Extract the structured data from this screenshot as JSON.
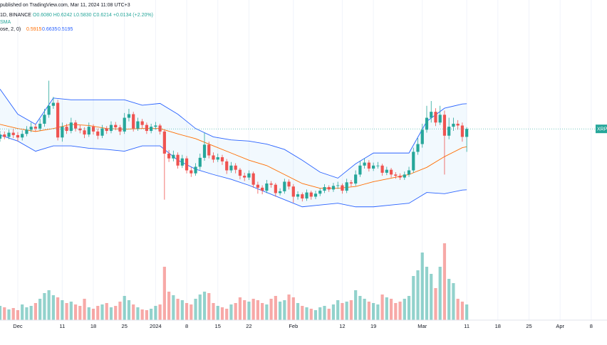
{
  "header": {
    "line1": "published on TradingView.com, Mar 11, 2024 11:08 UTC+3",
    "symbol": "1D, BINANCE",
    "ohlc": "O0.6080 H0.6242 L0.5830 C0.6214 +0.0134 (+2.20%)",
    "line3": "SMA",
    "indicator": "ose, 2, 0)",
    "basis": "0.5915",
    "upper": "0.6635",
    "lower": "0.5195"
  },
  "chart_data": {
    "type": "candlestick",
    "price_label": "XRPU",
    "up_color": "#26a69a",
    "down_color": "#ef5350",
    "ylim": [
      0.48,
      0.837
    ],
    "xlim": [
      0,
      136.55
    ],
    "xticks": [
      {
        "value": 4,
        "label": "Dec"
      },
      {
        "value": 14,
        "label": "11"
      },
      {
        "value": 21,
        "label": "18"
      },
      {
        "value": 28,
        "label": "25"
      },
      {
        "value": 35,
        "label": "2024"
      },
      {
        "value": 42,
        "label": "8"
      },
      {
        "value": 49,
        "label": "15"
      },
      {
        "value": 56,
        "label": "22"
      },
      {
        "value": 66,
        "label": "Feb"
      },
      {
        "value": 77,
        "label": "12"
      },
      {
        "value": 84,
        "label": "19"
      },
      {
        "value": 95,
        "label": "Mar"
      },
      {
        "value": 105,
        "label": "11"
      },
      {
        "value": 112,
        "label": "18"
      },
      {
        "value": 119,
        "label": "25"
      },
      {
        "value": 126,
        "label": "Apr"
      },
      {
        "value": 133,
        "label": "8"
      }
    ],
    "open": [
      0.605,
      0.612,
      0.608,
      0.615,
      0.611,
      0.607,
      0.613,
      0.62,
      0.625,
      0.622,
      0.63,
      0.645,
      0.66,
      0.665,
      0.607,
      0.625,
      0.618,
      0.632,
      0.622,
      0.619,
      0.612,
      0.625,
      0.617,
      0.61,
      0.622,
      0.618,
      0.628,
      0.624,
      0.617,
      0.64,
      0.646,
      0.622,
      0.634,
      0.628,
      0.618,
      0.625,
      0.627,
      0.617,
      0.58,
      0.572,
      0.578,
      0.56,
      0.572,
      0.552,
      0.547,
      0.558,
      0.573,
      0.595,
      0.577,
      0.57,
      0.574,
      0.567,
      0.552,
      0.56,
      0.553,
      0.543,
      0.54,
      0.547,
      0.528,
      0.523,
      0.518,
      0.53,
      0.528,
      0.514,
      0.517,
      0.533,
      0.525,
      0.508,
      0.512,
      0.505,
      0.515,
      0.508,
      0.513,
      0.518,
      0.524,
      0.52,
      0.526,
      0.527,
      0.518,
      0.532,
      0.53,
      0.545,
      0.56,
      0.565,
      0.555,
      0.56,
      0.56,
      0.548,
      0.553,
      0.545,
      0.543,
      0.54,
      0.545,
      0.552,
      0.583,
      0.596,
      0.62,
      0.64,
      0.65,
      0.632,
      0.645,
      0.61,
      0.625,
      0.63,
      0.627,
      0.608
    ],
    "high": [
      0.618,
      0.617,
      0.62,
      0.621,
      0.616,
      0.619,
      0.626,
      0.632,
      0.63,
      0.638,
      0.655,
      0.702,
      0.675,
      0.67,
      0.632,
      0.63,
      0.64,
      0.636,
      0.628,
      0.624,
      0.632,
      0.629,
      0.622,
      0.628,
      0.626,
      0.634,
      0.633,
      0.628,
      0.648,
      0.655,
      0.65,
      0.64,
      0.638,
      0.632,
      0.63,
      0.633,
      0.63,
      0.62,
      0.586,
      0.585,
      0.582,
      0.578,
      0.576,
      0.557,
      0.564,
      0.58,
      0.615,
      0.6,
      0.582,
      0.58,
      0.578,
      0.571,
      0.566,
      0.564,
      0.556,
      0.548,
      0.552,
      0.55,
      0.533,
      0.527,
      0.536,
      0.534,
      0.531,
      0.522,
      0.538,
      0.537,
      0.529,
      0.517,
      0.515,
      0.52,
      0.518,
      0.518,
      0.522,
      0.529,
      0.527,
      0.531,
      0.533,
      0.53,
      0.538,
      0.536,
      0.552,
      0.568,
      0.572,
      0.569,
      0.565,
      0.566,
      0.563,
      0.558,
      0.556,
      0.549,
      0.547,
      0.55,
      0.558,
      0.59,
      0.606,
      0.63,
      0.66,
      0.668,
      0.656,
      0.66,
      0.652,
      0.64,
      0.64,
      0.636,
      0.632,
      0.6242
    ],
    "low": [
      0.6,
      0.604,
      0.604,
      0.606,
      0.601,
      0.602,
      0.609,
      0.616,
      0.617,
      0.618,
      0.625,
      0.64,
      0.655,
      0.602,
      0.6,
      0.613,
      0.614,
      0.617,
      0.614,
      0.606,
      0.608,
      0.612,
      0.604,
      0.606,
      0.613,
      0.614,
      0.619,
      0.611,
      0.613,
      0.634,
      0.617,
      0.618,
      0.622,
      0.613,
      0.614,
      0.62,
      0.612,
      0.503,
      0.566,
      0.567,
      0.555,
      0.556,
      0.547,
      0.541,
      0.543,
      0.553,
      0.568,
      0.572,
      0.565,
      0.566,
      0.561,
      0.546,
      0.548,
      0.547,
      0.537,
      0.534,
      0.536,
      0.523,
      0.513,
      0.512,
      0.514,
      0.523,
      0.508,
      0.51,
      0.513,
      0.52,
      0.498,
      0.503,
      0.5,
      0.501,
      0.503,
      0.504,
      0.509,
      0.514,
      0.516,
      0.516,
      0.521,
      0.513,
      0.514,
      0.525,
      0.526,
      0.541,
      0.555,
      0.55,
      0.551,
      0.555,
      0.543,
      0.544,
      0.54,
      0.538,
      0.536,
      0.536,
      0.541,
      0.548,
      0.578,
      0.59,
      0.615,
      0.632,
      0.626,
      0.628,
      0.545,
      0.604,
      0.618,
      0.62,
      0.6,
      0.583
    ],
    "close": [
      0.612,
      0.608,
      0.615,
      0.611,
      0.607,
      0.613,
      0.62,
      0.625,
      0.622,
      0.63,
      0.645,
      0.66,
      0.665,
      0.607,
      0.625,
      0.618,
      0.632,
      0.622,
      0.619,
      0.612,
      0.625,
      0.617,
      0.61,
      0.622,
      0.618,
      0.628,
      0.624,
      0.617,
      0.64,
      0.646,
      0.622,
      0.634,
      0.628,
      0.618,
      0.625,
      0.627,
      0.617,
      0.58,
      0.572,
      0.578,
      0.56,
      0.572,
      0.552,
      0.547,
      0.558,
      0.573,
      0.595,
      0.577,
      0.57,
      0.574,
      0.567,
      0.552,
      0.56,
      0.553,
      0.543,
      0.54,
      0.547,
      0.528,
      0.523,
      0.518,
      0.53,
      0.528,
      0.514,
      0.517,
      0.533,
      0.525,
      0.508,
      0.512,
      0.505,
      0.515,
      0.508,
      0.513,
      0.518,
      0.524,
      0.52,
      0.526,
      0.527,
      0.518,
      0.532,
      0.53,
      0.545,
      0.56,
      0.565,
      0.555,
      0.56,
      0.56,
      0.548,
      0.553,
      0.545,
      0.543,
      0.54,
      0.545,
      0.552,
      0.583,
      0.596,
      0.62,
      0.64,
      0.65,
      0.632,
      0.645,
      0.61,
      0.625,
      0.63,
      0.627,
      0.608,
      0.6214
    ],
    "vlim": [
      0,
      120
    ],
    "volume": [
      20,
      18,
      15,
      17,
      14,
      22,
      18,
      20,
      24,
      30,
      38,
      42,
      35,
      32,
      28,
      24,
      26,
      22,
      20,
      30,
      18,
      16,
      20,
      22,
      24,
      18,
      20,
      26,
      34,
      28,
      22,
      18,
      15,
      14,
      16,
      20,
      22,
      75,
      40,
      35,
      30,
      28,
      24,
      22,
      30,
      36,
      40,
      38,
      24,
      20,
      18,
      16,
      22,
      24,
      32,
      28,
      26,
      30,
      28,
      24,
      22,
      30,
      34,
      26,
      28,
      36,
      32,
      24,
      20,
      18,
      16,
      14,
      18,
      20,
      16,
      22,
      28,
      24,
      26,
      28,
      42,
      34,
      30,
      26,
      24,
      22,
      36,
      32,
      30,
      24,
      26,
      30,
      34,
      62,
      70,
      95,
      75,
      65,
      45,
      75,
      108,
      58,
      52,
      30,
      26,
      22
    ],
    "bands": {
      "x": [
        0,
        4,
        8,
        12,
        16,
        20,
        24,
        28,
        32,
        36,
        40,
        44,
        48,
        52,
        56,
        60,
        64,
        68,
        72,
        76,
        80,
        84,
        88,
        92,
        96,
        100,
        104,
        105
      ],
      "upper": [
        0.688,
        0.646,
        0.629,
        0.673,
        0.67,
        0.67,
        0.67,
        0.67,
        0.661,
        0.664,
        0.646,
        0.622,
        0.608,
        0.603,
        0.601,
        0.596,
        0.587,
        0.569,
        0.549,
        0.539,
        0.563,
        0.581,
        0.581,
        0.581,
        0.634,
        0.656,
        0.663,
        0.6635
      ],
      "basis": [
        0.629,
        0.622,
        0.617,
        0.622,
        0.629,
        0.627,
        0.622,
        0.621,
        0.622,
        0.622,
        0.613,
        0.605,
        0.593,
        0.581,
        0.569,
        0.56,
        0.545,
        0.53,
        0.522,
        0.522,
        0.525,
        0.533,
        0.539,
        0.545,
        0.557,
        0.575,
        0.59,
        0.5915
      ],
      "lower": [
        0.611,
        0.601,
        0.584,
        0.593,
        0.593,
        0.589,
        0.587,
        0.584,
        0.593,
        0.593,
        0.569,
        0.554,
        0.545,
        0.537,
        0.527,
        0.515,
        0.503,
        0.491,
        0.494,
        0.497,
        0.491,
        0.491,
        0.494,
        0.497,
        0.515,
        0.513,
        0.519,
        0.5195
      ],
      "upper_color": "#2962ff",
      "basis_color": "#ff6d00",
      "fill": "rgba(33,150,243,0.06)"
    }
  }
}
